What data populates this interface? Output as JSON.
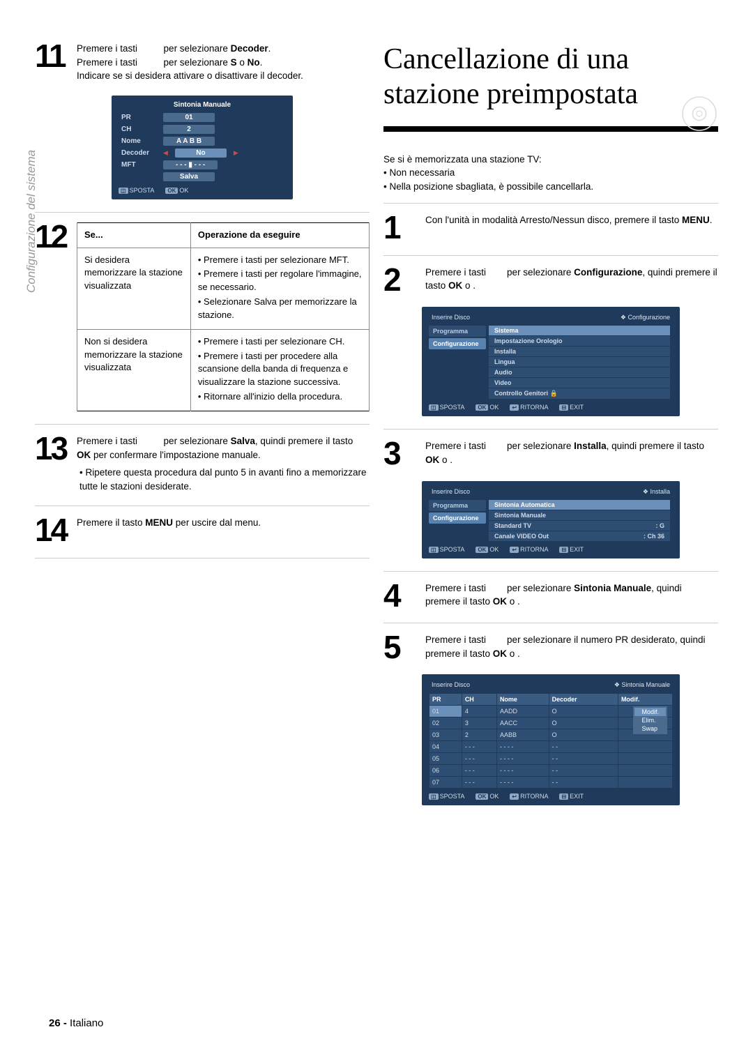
{
  "sidebar_label": "Configurazione del sistema",
  "left": {
    "step11": {
      "line1_a": "Premere i tasti",
      "line1_b": "per selezionare ",
      "line1_bold": "Decoder",
      "line1_c": ".",
      "line2_a": "Premere i tasti",
      "line2_b": "per selezionare ",
      "line2_bold": "S",
      "line2_mid": " o ",
      "line2_bold2": "No",
      "line2_end": ".",
      "line3": "Indicare se si desidera attivare o disattivare il decoder."
    },
    "osd11": {
      "title": "Sintonia Manuale",
      "rows": [
        {
          "label": "PR",
          "val": "01"
        },
        {
          "label": "CH",
          "val": "2"
        },
        {
          "label": "Nome",
          "val": "A A B B"
        },
        {
          "label": "Decoder",
          "val": "No",
          "arrows": true
        },
        {
          "label": "MFT",
          "val": "- - - ▮ - - -"
        },
        {
          "label": "",
          "val": "Salva"
        }
      ],
      "footer": [
        {
          "b": "◫",
          "t": "SPOSTA"
        },
        {
          "b": "OK",
          "t": "OK"
        }
      ]
    },
    "step12": {
      "th1": "Se...",
      "th2": "Operazione da eseguire",
      "r1c1": "Si desidera memorizzare la stazione visualizzata",
      "r1c2_items": [
        "Premere i tasti          per selezionare MFT.",
        "Premere i tasti          per regolare l'immagine, se necessario.",
        "Selezionare Salva per memorizzare la stazione."
      ],
      "r2c1": "Non si desidera memorizzare la stazione visualizzata",
      "r2c2_items": [
        "Premere i tasti          per selezionare CH.",
        "Premere i tasti          per procedere alla scansione della banda di frequenza e visualizzare la stazione successiva.",
        "Ritornare all'inizio della procedura."
      ]
    },
    "step13": {
      "a": "Premere i tasti",
      "b": "per selezionare ",
      "bold": "Salva",
      "c": ", quindi premere il tasto ",
      "bold2": "OK",
      "d": " per confermare l'impostazione manuale.",
      "bullet": "Ripetere questa procedura dal punto 5 in avanti fino a memorizzare tutte le stazioni desiderate."
    },
    "step14": {
      "a": "Premere il tasto ",
      "bold": "MENU",
      "b": " per uscire dal menu."
    }
  },
  "right": {
    "title": "Cancellazione di una stazione preimpostata",
    "intro_a": "Se si è memorizzata una stazione TV:",
    "intro_items": [
      "Non necessaria",
      "Nella posizione sbagliata, è possibile cancellarla."
    ],
    "step1": {
      "a": "Con l'unità in modalità Arresto/Nessun disco, premere il tasto ",
      "bold": "MENU",
      "b": "."
    },
    "step2": {
      "a": "Premere i tasti",
      "b": "per selezionare ",
      "bold": "Configurazione",
      "c": ", quindi premere il tasto ",
      "bold2": "OK",
      "d": " o   ."
    },
    "osd2": {
      "header_l": "Inserire Disco",
      "header_r": "❖ Configurazione",
      "tabs": [
        {
          "t": "Programma",
          "sel_bg": true
        },
        {
          "t": "Configurazione",
          "sel": true
        }
      ],
      "items": [
        {
          "t": "Sistema",
          "sel": true
        },
        {
          "t": "Impostazione Orologio"
        },
        {
          "t": "Installa"
        },
        {
          "t": "Lingua"
        },
        {
          "t": "Audio"
        },
        {
          "t": "Video"
        },
        {
          "t": "Controllo Genitori 🔒"
        }
      ],
      "footer": [
        {
          "b": "◫",
          "t": "SPOSTA"
        },
        {
          "b": "OK",
          "t": "OK"
        },
        {
          "b": "↩",
          "t": "RITORNA"
        },
        {
          "b": "⊟",
          "t": "EXIT"
        }
      ]
    },
    "step3": {
      "a": "Premere i tasti",
      "b": "per selezionare ",
      "bold": "Installa",
      "c": ", quindi premere il tasto ",
      "bold2": "OK",
      "d": " o   ."
    },
    "osd3": {
      "header_l": "Inserire Disco",
      "header_r": "❖ Installa",
      "tabs": [
        {
          "t": "Programma",
          "sel_bg": true
        },
        {
          "t": "Configurazione",
          "sel": true
        }
      ],
      "items": [
        {
          "t": "Sintonia Automatica",
          "sel": true
        },
        {
          "t": "Sintonia Manuale"
        },
        {
          "t": "Standard TV",
          "r": ": G"
        },
        {
          "t": "Canale VIDEO Out",
          "r": ": Ch 36"
        }
      ],
      "footer": [
        {
          "b": "◫",
          "t": "SPOSTA"
        },
        {
          "b": "OK",
          "t": "OK"
        },
        {
          "b": "↩",
          "t": "RITORNA"
        },
        {
          "b": "⊟",
          "t": "EXIT"
        }
      ]
    },
    "step4": {
      "a": "Premere i tasti",
      "b": "per selezionare ",
      "bold": "Sintonia Manuale",
      "c": ", quindi premere il tasto ",
      "bold2": "OK",
      "d": " o   ."
    },
    "step5": {
      "a": "Premere i tasti",
      "b": "per selezionare il numero PR desiderato, quindi premere il tasto ",
      "bold": "OK",
      "c": " o   ."
    },
    "osd5": {
      "header_l": "Inserire Disco",
      "header_r": "❖ Sintonia Manuale",
      "cols": [
        "PR",
        "CH",
        "Nome",
        "Decoder",
        "Modif."
      ],
      "rows": [
        [
          "01",
          "4",
          "AADD",
          "O",
          ""
        ],
        [
          "02",
          "3",
          "AACC",
          "O",
          ""
        ],
        [
          "03",
          "2",
          "AABB",
          "O",
          ""
        ],
        [
          "04",
          "- - -",
          "- - - -",
          "- -",
          ""
        ],
        [
          "05",
          "- - -",
          "- - - -",
          "- -",
          ""
        ],
        [
          "06",
          "- - -",
          "- - - -",
          "- -",
          ""
        ],
        [
          "07",
          "- - -",
          "- - - -",
          "- -",
          ""
        ]
      ],
      "popup": [
        {
          "t": "Modif.",
          "sel": true
        },
        {
          "t": "Elim."
        },
        {
          "t": "Swap"
        }
      ],
      "footer": [
        {
          "b": "◫",
          "t": "SPOSTA"
        },
        {
          "b": "OK",
          "t": "OK"
        },
        {
          "b": "↩",
          "t": "RITORNA"
        },
        {
          "b": "⊟",
          "t": "EXIT"
        }
      ]
    }
  },
  "footer": {
    "page": "26 -",
    "lang": "Italiano"
  }
}
